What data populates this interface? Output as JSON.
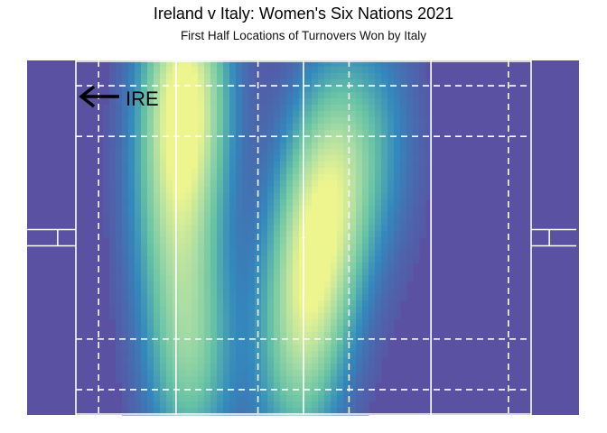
{
  "chart_data": {
    "type": "heatmap",
    "title": "Ireland v Italy: Women's Six Nations 2021",
    "subtitle": "First Half Locations of Turnovers Won by Italy",
    "direction_annotation": "IRE",
    "direction_arrow": "left",
    "pitch": {
      "field_length_m": 100,
      "in_goal_m": 10,
      "width_m": 70,
      "lines_solid": [
        "try-line-left",
        "22m-left",
        "halfway",
        "22m-right",
        "try-line-right",
        "touchlines"
      ],
      "lines_dashed": [
        "5m-left",
        "10m-left",
        "10m-right",
        "5m-right",
        "5m-touch-top",
        "15m-touch-top",
        "15m-touch-bottom",
        "5m-touch-bottom"
      ],
      "y_axis_direction": "from bottom touchline"
    },
    "density_hotspots": [
      {
        "x_m": 24,
        "y_m": 64,
        "intensity": 1.0
      },
      {
        "x_m": 22,
        "y_m": 40,
        "intensity": 0.55
      },
      {
        "x_m": 25,
        "y_m": 12,
        "intensity": 0.6
      },
      {
        "x_m": 52,
        "y_m": 30,
        "intensity": 0.75
      },
      {
        "x_m": 57,
        "y_m": 48,
        "intensity": 0.6
      },
      {
        "x_m": 48,
        "y_m": 10,
        "intensity": 0.45
      },
      {
        "x_m": 66,
        "y_m": 55,
        "intensity": 0.25
      }
    ],
    "color_scale": {
      "low": "#5b51a3",
      "mid_low": "#3388bd",
      "mid": "#66c2a5",
      "mid_high": "#abdda4",
      "high": "#eef58f"
    },
    "background_color": "#5b51a3",
    "line_color": "#ffffff"
  }
}
